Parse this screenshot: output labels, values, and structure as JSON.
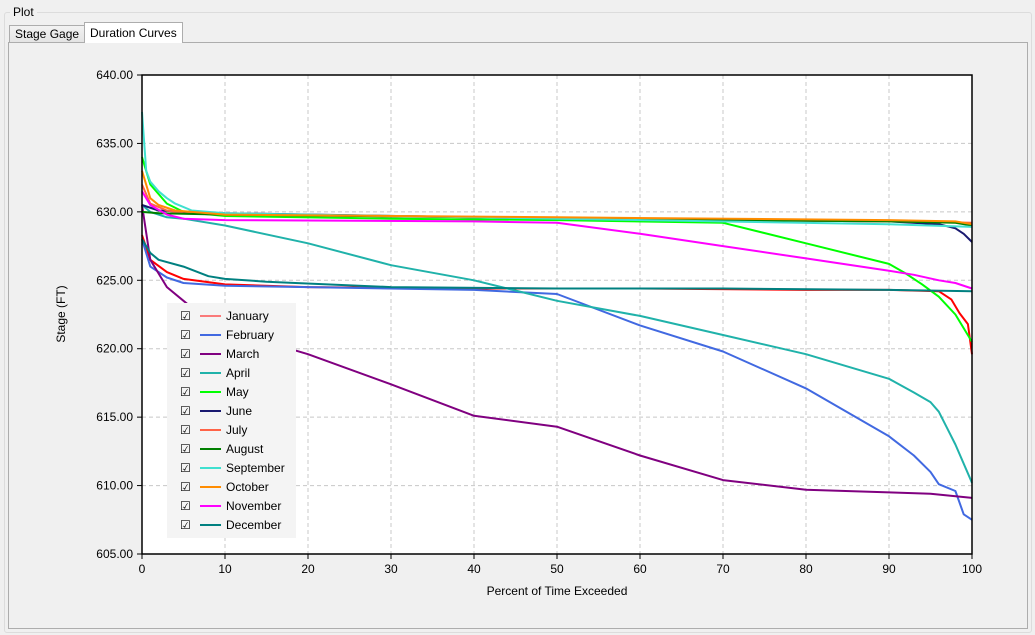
{
  "group_label": "Plot",
  "tabs": [
    {
      "label": "Stage Gage",
      "active": false
    },
    {
      "label": "Duration Curves",
      "active": true
    }
  ],
  "chart_data": {
    "type": "line",
    "title": "",
    "xlabel": "Percent of Time Exceeded",
    "ylabel": "Stage (FT)",
    "xlim": [
      0,
      100
    ],
    "ylim": [
      605,
      640
    ],
    "x_ticks": [
      "0",
      "10",
      "20",
      "30",
      "40",
      "50",
      "60",
      "70",
      "80",
      "90",
      "100"
    ],
    "y_ticks": [
      "605.00",
      "610.00",
      "615.00",
      "620.00",
      "625.00",
      "630.00",
      "635.00",
      "640.00"
    ],
    "grid": true,
    "legend_placement": "bottom-left",
    "series": [
      {
        "name": "January",
        "color": "#ff0000",
        "checked": true,
        "x": [
          0,
          1,
          3,
          5,
          10,
          20,
          40,
          60,
          80,
          90,
          96,
          97.5,
          98.5,
          99.5,
          100
        ],
        "y": [
          628.3,
          626.5,
          625.6,
          625.1,
          624.7,
          624.5,
          624.4,
          624.4,
          624.3,
          624.3,
          624.2,
          623.6,
          622.6,
          621.8,
          619.6
        ]
      },
      {
        "name": "February",
        "color": "#4169e1",
        "checked": true,
        "x": [
          0,
          1,
          3,
          5,
          10,
          20,
          40,
          50,
          60,
          70,
          80,
          90,
          93,
          95,
          96,
          98,
          99,
          100
        ],
        "y": [
          628,
          626,
          625.2,
          624.8,
          624.6,
          624.5,
          624.3,
          624.0,
          621.7,
          619.8,
          617.1,
          613.6,
          612.2,
          611,
          610.1,
          609.6,
          607.9,
          607.5
        ]
      },
      {
        "name": "March",
        "color": "#800080",
        "checked": true,
        "x": [
          0,
          1,
          3,
          5,
          8,
          15,
          20,
          30,
          40,
          50,
          60,
          70,
          80,
          90,
          95,
          100
        ],
        "y": [
          630.5,
          626.5,
          624.5,
          623.5,
          622,
          620.5,
          619.6,
          617.4,
          615.1,
          614.3,
          612.2,
          610.4,
          609.7,
          609.5,
          609.4,
          609.1
        ]
      },
      {
        "name": "April",
        "color": "#20b2aa",
        "checked": true,
        "x": [
          0,
          1,
          3,
          5,
          10,
          20,
          30,
          40,
          50,
          60,
          70,
          80,
          90,
          93,
          95,
          96,
          97,
          98,
          100
        ],
        "y": [
          630.5,
          630,
          629.6,
          629.5,
          629.0,
          627.7,
          626.1,
          625.0,
          623.5,
          622.4,
          621.0,
          619.6,
          617.8,
          616.8,
          616.1,
          615.4,
          614.2,
          613.0,
          610.2
        ]
      },
      {
        "name": "May",
        "color": "#00ff00",
        "checked": true,
        "x": [
          0,
          1,
          3,
          5,
          10,
          30,
          50,
          70,
          80,
          90,
          92,
          94,
          96,
          98,
          100
        ],
        "y": [
          634,
          632,
          630.6,
          630,
          629.7,
          629.5,
          629.4,
          629.2,
          627.7,
          626.2,
          625.5,
          624.7,
          623.8,
          622.5,
          620.5
        ]
      },
      {
        "name": "June",
        "color": "#191970",
        "checked": true,
        "x": [
          0,
          2,
          10,
          40,
          70,
          90,
          96,
          98,
          99,
          100
        ],
        "y": [
          630.5,
          630.1,
          629.9,
          629.6,
          629.4,
          629.3,
          629.1,
          628.8,
          628.4,
          627.8
        ]
      },
      {
        "name": "July",
        "color": "#ff6347",
        "checked": true,
        "x": [
          0,
          1,
          3,
          5,
          10,
          40,
          70,
          90,
          100
        ],
        "y": [
          632,
          630.6,
          630.1,
          629.9,
          629.8,
          629.6,
          629.4,
          629.3,
          629.2
        ]
      },
      {
        "name": "August",
        "color": "#008000",
        "checked": true,
        "x": [
          0,
          2,
          10,
          40,
          70,
          90,
          98,
          100
        ],
        "y": [
          630,
          629.9,
          629.8,
          629.6,
          629.4,
          629.3,
          629.2,
          629.0
        ]
      },
      {
        "name": "September",
        "color": "#40e0d0",
        "checked": true,
        "x": [
          0,
          0.5,
          1,
          2,
          3,
          4,
          6,
          10,
          20,
          50,
          90,
          100
        ],
        "y": [
          637.3,
          633,
          632.2,
          631.5,
          631,
          630.6,
          630.1,
          629.9,
          629.8,
          629.5,
          629.1,
          628.9
        ]
      },
      {
        "name": "October",
        "color": "#ff8c00",
        "checked": true,
        "x": [
          0,
          1,
          2,
          4,
          10,
          30,
          50,
          90,
          98,
          100
        ],
        "y": [
          633,
          631,
          630.5,
          630.1,
          629.8,
          629.7,
          629.6,
          629.4,
          629.3,
          629.1
        ]
      },
      {
        "name": "November",
        "color": "#ff00ff",
        "checked": true,
        "x": [
          0,
          1,
          3,
          5,
          10,
          40,
          50,
          60,
          70,
          80,
          90,
          93,
          96,
          98,
          100
        ],
        "y": [
          631.5,
          630.5,
          629.8,
          629.5,
          629.4,
          629.3,
          629.2,
          628.4,
          627.5,
          626.6,
          625.7,
          625.4,
          625.0,
          624.8,
          624.4
        ]
      },
      {
        "name": "December",
        "color": "#008080",
        "checked": true,
        "x": [
          0,
          1,
          2,
          5,
          8,
          10,
          15,
          30,
          50,
          70,
          90,
          100
        ],
        "y": [
          628,
          627,
          626.5,
          626,
          625.3,
          625.1,
          624.9,
          624.5,
          624.4,
          624.4,
          624.3,
          624.2
        ]
      }
    ]
  }
}
